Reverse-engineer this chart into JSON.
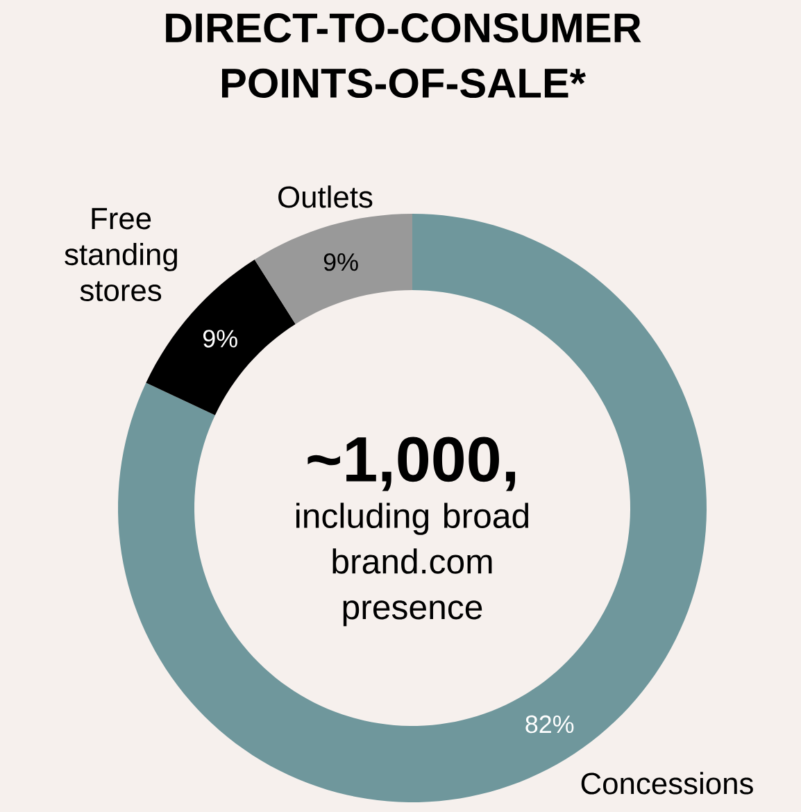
{
  "chart_data": {
    "type": "donut",
    "title": "DIRECT-TO-CONSUMER POINTS-OF-SALE*",
    "categories": [
      "Concessions",
      "Free standing stores",
      "Outlets"
    ],
    "values": [
      82,
      9,
      9
    ],
    "colors": [
      "#6f979c",
      "#000000",
      "#999999"
    ],
    "value_labels": [
      "82%",
      "9%",
      "9%"
    ],
    "annotations": [
      "~1,000,",
      "including broad brand.com presence"
    ]
  }
}
